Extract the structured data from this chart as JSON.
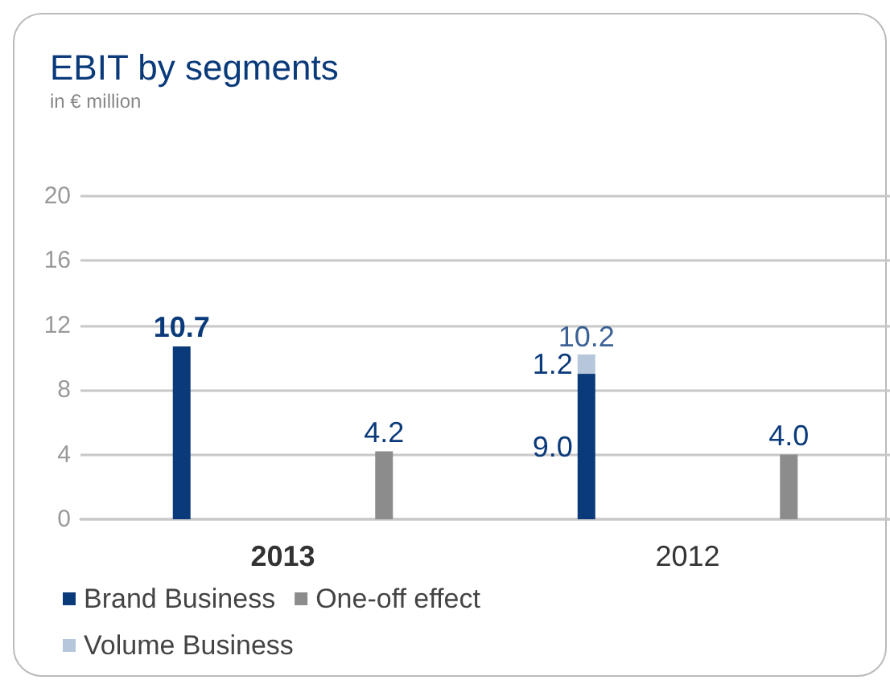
{
  "chart_data": {
    "type": "bar",
    "title": "EBIT by segments",
    "subtitle": "in € million",
    "categories": [
      "2013",
      null,
      "2012",
      null
    ],
    "series": [
      {
        "name": "Brand Business",
        "color": "#0a3a7a",
        "values": [
          10.7,
          null,
          9.0,
          null
        ],
        "value_labels": [
          "10.7",
          null,
          "9.0",
          null
        ]
      },
      {
        "name": "One-off effect",
        "color": "#8c8c8c",
        "values": [
          null,
          4.2,
          null,
          4.0
        ],
        "value_labels": [
          null,
          "4.2",
          null,
          "4.0"
        ]
      },
      {
        "name": "Volume Business",
        "color": "#b6c7dc",
        "values": [
          null,
          null,
          1.2,
          null
        ],
        "value_labels": [
          null,
          null,
          "1.2",
          null
        ]
      }
    ],
    "stacked": true,
    "totals": [
      null,
      null,
      "10.2",
      null
    ],
    "ylim": [
      0,
      20
    ],
    "yticks": [
      0,
      4,
      8,
      12,
      16,
      20
    ],
    "grid": "y",
    "legend": "bottom left"
  }
}
